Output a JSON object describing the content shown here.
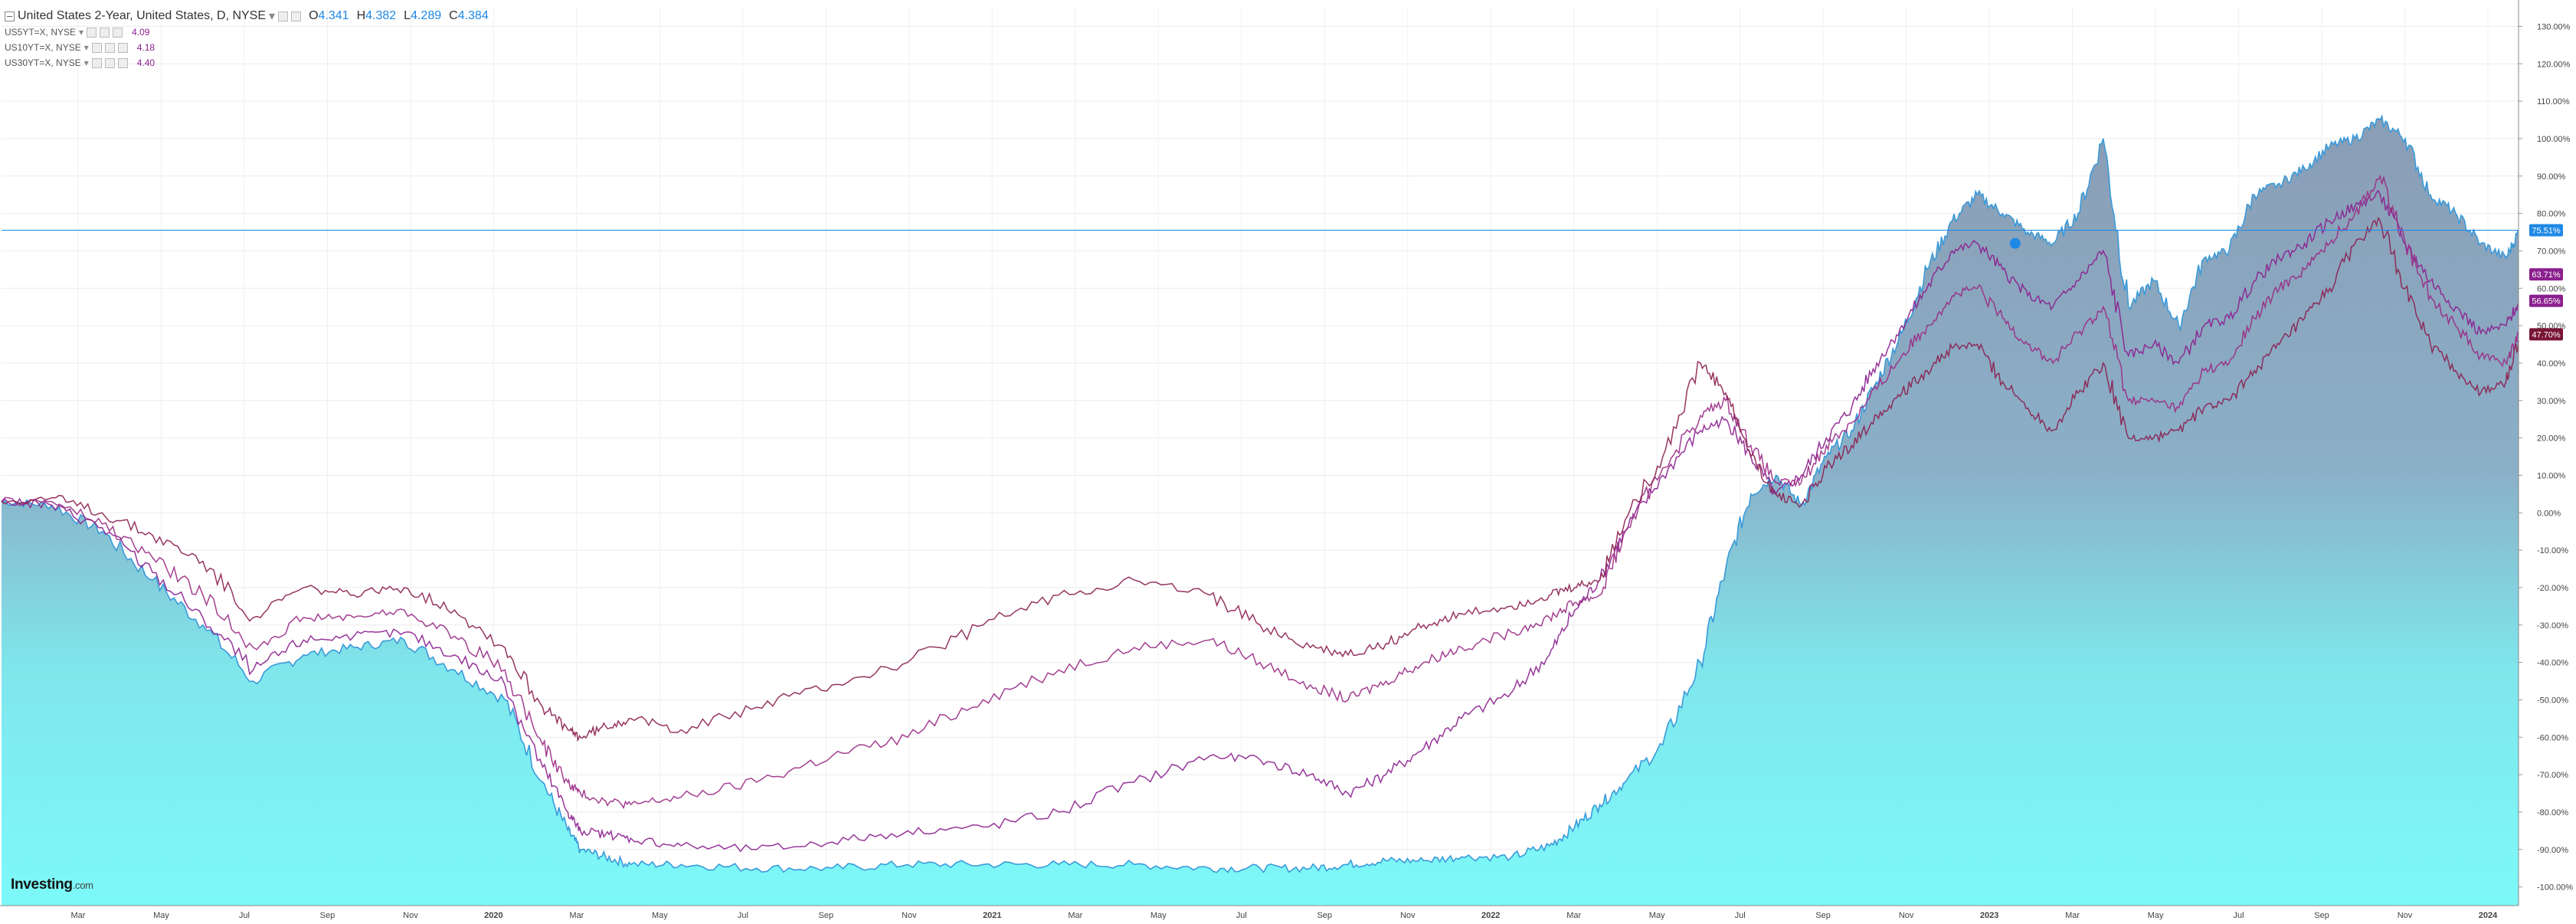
{
  "header": {
    "title": "United States 2-Year, United States, D, NYSE",
    "ohlc": [
      {
        "key": "O",
        "value": "4.341"
      },
      {
        "key": "H",
        "value": "4.382"
      },
      {
        "key": "L",
        "value": "4.289"
      },
      {
        "key": "C",
        "value": "4.384"
      }
    ]
  },
  "legend": [
    {
      "label": "US5YT=X, NYSE",
      "value": "4.09",
      "color": "#8b1f8f"
    },
    {
      "label": "US10YT=X, NYSE",
      "value": "4.18",
      "color": "#8b1f8f"
    },
    {
      "label": "US30YT=X, NYSE",
      "value": "4.40",
      "color": "#8b1f8f"
    }
  ],
  "logo": {
    "main": "Investing",
    "suffix": ".com"
  },
  "colors": {
    "main_line": "#3a9ad9",
    "area_top": "#8fa6c0",
    "area_bottom": "#7df9f9",
    "compare": "#8b1f8f",
    "crosshair": "#1e88e5",
    "marker": "#1e88e5"
  },
  "chart_data": {
    "type": "line",
    "ylim": [
      -105,
      135
    ],
    "y_axis_unit": "%",
    "y_ticks": [
      "130.00%",
      "120.00%",
      "110.00%",
      "100.00%",
      "90.00%",
      "80.00%",
      "70.00%",
      "60.00%",
      "50.00%",
      "40.00%",
      "30.00%",
      "20.00%",
      "10.00%",
      "0.00%",
      "-10.00%",
      "-20.00%",
      "-30.00%",
      "-40.00%",
      "-50.00%",
      "-60.00%",
      "-70.00%",
      "-80.00%",
      "-90.00%",
      "-100.00%"
    ],
    "x_ticks": [
      "Mar",
      "May",
      "Jul",
      "Sep",
      "Nov",
      "2020",
      "Mar",
      "May",
      "Jul",
      "Sep",
      "Nov",
      "2021",
      "Mar",
      "May",
      "Jul",
      "Sep",
      "Nov",
      "2022",
      "Mar",
      "May",
      "Jul",
      "Sep",
      "Nov",
      "2023",
      "Mar",
      "May",
      "Jul",
      "Sep",
      "Nov",
      "2024"
    ],
    "bold_ticks": [
      "2020",
      "2021",
      "2022",
      "2023",
      "2024"
    ],
    "series": [
      {
        "name": "United States 2-Year",
        "kind": "area",
        "x": [
          0,
          0.02,
          0.04,
          0.06,
          0.08,
          0.1,
          0.12,
          0.14,
          0.16,
          0.18,
          0.2,
          0.215,
          0.225,
          0.23,
          0.24,
          0.25,
          0.27,
          0.3,
          0.33,
          0.36,
          0.39,
          0.42,
          0.45,
          0.48,
          0.5,
          0.52,
          0.535,
          0.55,
          0.565,
          0.58,
          0.6,
          0.615,
          0.625,
          0.635,
          0.645,
          0.66,
          0.675,
          0.685,
          0.695,
          0.705,
          0.715,
          0.725,
          0.735,
          0.745,
          0.755,
          0.765,
          0.775,
          0.785,
          0.795,
          0.805,
          0.815,
          0.825,
          0.835,
          0.845,
          0.855,
          0.865,
          0.875,
          0.885,
          0.895,
          0.905,
          0.915,
          0.925,
          0.935,
          0.945,
          0.955,
          0.965,
          0.975,
          0.985,
          0.995,
          1.0
        ],
        "y": [
          3,
          2,
          -5,
          -18,
          -30,
          -45,
          -38,
          -36,
          -34,
          -42,
          -50,
          -72,
          -85,
          -90,
          -92,
          -94,
          -94,
          -95,
          -95,
          -94,
          -94,
          -94,
          -94,
          -95,
          -95,
          -95,
          -94,
          -93,
          -93,
          -92,
          -92,
          -89,
          -84,
          -78,
          -72,
          -62,
          -40,
          -15,
          5,
          10,
          2,
          15,
          22,
          35,
          48,
          65,
          78,
          85,
          80,
          75,
          72,
          80,
          100,
          55,
          62,
          50,
          68,
          70,
          85,
          88,
          92,
          98,
          100,
          105,
          100,
          85,
          80,
          72,
          68,
          75
        ]
      },
      {
        "name": "US5YT=X, NYSE",
        "x": [
          0,
          0.02,
          0.04,
          0.06,
          0.08,
          0.1,
          0.12,
          0.14,
          0.16,
          0.18,
          0.2,
          0.215,
          0.225,
          0.23,
          0.24,
          0.25,
          0.27,
          0.3,
          0.33,
          0.36,
          0.39,
          0.42,
          0.45,
          0.48,
          0.5,
          0.52,
          0.535,
          0.55,
          0.565,
          0.58,
          0.6,
          0.615,
          0.625,
          0.635,
          0.645,
          0.66,
          0.675,
          0.685,
          0.695,
          0.705,
          0.715,
          0.725,
          0.735,
          0.745,
          0.755,
          0.765,
          0.775,
          0.785,
          0.795,
          0.805,
          0.815,
          0.825,
          0.835,
          0.845,
          0.855,
          0.865,
          0.875,
          0.885,
          0.895,
          0.905,
          0.915,
          0.925,
          0.935,
          0.945,
          0.955,
          0.965,
          0.975,
          0.985,
          0.995,
          1.0
        ],
        "y": [
          3,
          2,
          -4,
          -16,
          -28,
          -42,
          -34,
          -33,
          -32,
          -38,
          -46,
          -68,
          -80,
          -85,
          -86,
          -87,
          -89,
          -90,
          -88,
          -85,
          -84,
          -80,
          -72,
          -65,
          -66,
          -70,
          -75,
          -70,
          -63,
          -55,
          -48,
          -38,
          -26,
          -18,
          -5,
          10,
          22,
          25,
          15,
          5,
          10,
          20,
          28,
          40,
          50,
          60,
          70,
          72,
          65,
          58,
          55,
          62,
          70,
          42,
          45,
          40,
          50,
          52,
          62,
          68,
          72,
          78,
          82,
          85,
          72,
          62,
          55,
          48,
          50,
          56
        ]
      },
      {
        "name": "US10YT=X, NYSE",
        "x": [
          0,
          0.02,
          0.04,
          0.06,
          0.08,
          0.1,
          0.12,
          0.14,
          0.16,
          0.18,
          0.2,
          0.215,
          0.225,
          0.23,
          0.24,
          0.25,
          0.27,
          0.3,
          0.33,
          0.36,
          0.39,
          0.42,
          0.45,
          0.48,
          0.5,
          0.52,
          0.535,
          0.55,
          0.565,
          0.58,
          0.6,
          0.615,
          0.625,
          0.635,
          0.645,
          0.66,
          0.675,
          0.685,
          0.695,
          0.705,
          0.715,
          0.725,
          0.735,
          0.745,
          0.755,
          0.765,
          0.775,
          0.785,
          0.795,
          0.805,
          0.815,
          0.825,
          0.835,
          0.845,
          0.855,
          0.865,
          0.875,
          0.885,
          0.895,
          0.905,
          0.915,
          0.925,
          0.935,
          0.945,
          0.955,
          0.965,
          0.975,
          0.985,
          0.995,
          1.0
        ],
        "y": [
          3,
          3,
          -3,
          -12,
          -22,
          -36,
          -28,
          -28,
          -26,
          -33,
          -42,
          -62,
          -72,
          -75,
          -77,
          -78,
          -76,
          -72,
          -65,
          -60,
          -50,
          -42,
          -36,
          -34,
          -40,
          -46,
          -50,
          -45,
          -40,
          -36,
          -32,
          -28,
          -24,
          -22,
          -5,
          12,
          26,
          30,
          18,
          8,
          8,
          18,
          24,
          33,
          42,
          50,
          58,
          60,
          52,
          45,
          40,
          48,
          55,
          30,
          30,
          28,
          38,
          40,
          52,
          60,
          65,
          72,
          80,
          90,
          72,
          58,
          50,
          42,
          40,
          48
        ]
      },
      {
        "name": "US30YT=X, NYSE",
        "x": [
          0,
          0.02,
          0.04,
          0.06,
          0.08,
          0.1,
          0.12,
          0.14,
          0.16,
          0.18,
          0.2,
          0.215,
          0.225,
          0.23,
          0.24,
          0.25,
          0.27,
          0.3,
          0.33,
          0.36,
          0.39,
          0.42,
          0.45,
          0.48,
          0.5,
          0.52,
          0.535,
          0.55,
          0.565,
          0.58,
          0.6,
          0.615,
          0.625,
          0.635,
          0.645,
          0.66,
          0.675,
          0.685,
          0.695,
          0.705,
          0.715,
          0.725,
          0.735,
          0.745,
          0.755,
          0.765,
          0.775,
          0.785,
          0.795,
          0.805,
          0.815,
          0.825,
          0.835,
          0.845,
          0.855,
          0.865,
          0.875,
          0.885,
          0.895,
          0.905,
          0.915,
          0.925,
          0.935,
          0.945,
          0.955,
          0.965,
          0.975,
          0.985,
          0.995,
          1.0
        ],
        "y": [
          3,
          4,
          0,
          -6,
          -13,
          -28,
          -20,
          -22,
          -20,
          -26,
          -36,
          -52,
          -58,
          -60,
          -57,
          -55,
          -58,
          -52,
          -46,
          -40,
          -30,
          -22,
          -18,
          -22,
          -30,
          -36,
          -38,
          -35,
          -30,
          -27,
          -25,
          -22,
          -20,
          -18,
          -2,
          15,
          40,
          32,
          15,
          5,
          2,
          12,
          18,
          26,
          32,
          38,
          44,
          45,
          35,
          28,
          22,
          32,
          40,
          20,
          20,
          22,
          28,
          30,
          38,
          45,
          52,
          60,
          72,
          78,
          60,
          45,
          38,
          32,
          35,
          46
        ]
      }
    ],
    "crosshair_y": 75.51,
    "price_labels": [
      {
        "text": "75.51%",
        "value": 75.51,
        "color": "#1e88e5"
      },
      {
        "text": "63.71%",
        "value": 63.71,
        "color": "#8b1f8f"
      },
      {
        "text": "56.65%",
        "value": 56.65,
        "color": "#8b1f8f"
      },
      {
        "text": "47.70%",
        "value": 47.7,
        "color": "#7a1535"
      }
    ],
    "marker": {
      "x": 0.8,
      "y": 72
    }
  }
}
